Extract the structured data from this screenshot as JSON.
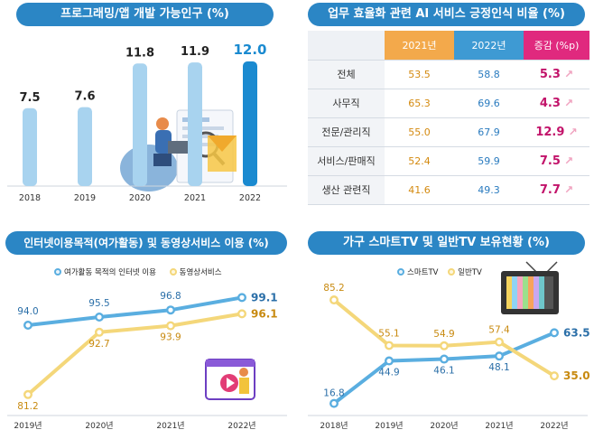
{
  "chart_data": [
    {
      "type": "bar",
      "title": "프로그래밍/앱 개발 가능인구 (%)",
      "categories": [
        "2018",
        "2019",
        "2020",
        "2021",
        "2022"
      ],
      "values": [
        7.5,
        7.6,
        11.8,
        11.9,
        12.0
      ],
      "value_labels": [
        "7.5",
        "7.6",
        "11.8",
        "11.9",
        "12.0"
      ],
      "highlight_index": 4,
      "colors": {
        "bar": "#a8d3ef",
        "highlight": "#1a8ad0"
      }
    },
    {
      "type": "table",
      "title": "업무 효율화 관련 AI 서비스 긍정인식 비율 (%)",
      "columns": [
        "2021년",
        "2022년",
        "증감 (%p)"
      ],
      "rows": [
        {
          "label": "전체",
          "y2021": "53.5",
          "y2022": "58.8",
          "change": "5.3"
        },
        {
          "label": "사무직",
          "y2021": "65.3",
          "y2022": "69.6",
          "change": "4.3"
        },
        {
          "label": "전문/관리직",
          "y2021": "55.0",
          "y2022": "67.9",
          "change": "12.9"
        },
        {
          "label": "서비스/판매직",
          "y2021": "52.4",
          "y2022": "59.9",
          "change": "7.5"
        },
        {
          "label": "생산 관련직",
          "y2021": "41.6",
          "y2022": "49.3",
          "change": "7.7"
        }
      ]
    },
    {
      "type": "line",
      "title": "인터넷이용목적(여가활동) 및 동영상서비스 이용 (%)",
      "x": [
        "2019년",
        "2020년",
        "2021년",
        "2022년"
      ],
      "series": [
        {
          "name": "여가활동 목적의 인터넷 이용",
          "values": [
            94.0,
            95.5,
            96.8,
            99.1
          ],
          "labels": [
            "94.0",
            "95.5",
            "96.8",
            "99.1"
          ],
          "color": "#5aaee0"
        },
        {
          "name": "동영상서비스",
          "values": [
            81.2,
            92.7,
            93.9,
            96.1
          ],
          "labels": [
            "81.2",
            "92.7",
            "93.9",
            "96.1"
          ],
          "color": "#f4d77a"
        }
      ]
    },
    {
      "type": "line",
      "title": "가구 스마트TV 및 일반TV 보유현황 (%)",
      "x": [
        "2018년",
        "2019년",
        "2020년",
        "2021년",
        "2022년"
      ],
      "series": [
        {
          "name": "스마트TV",
          "values": [
            16.8,
            44.9,
            46.1,
            48.1,
            63.5
          ],
          "labels": [
            "16.8",
            "44.9",
            "46.1",
            "48.1",
            "63.5"
          ],
          "color": "#5aaee0"
        },
        {
          "name": "일반TV",
          "values": [
            85.2,
            55.1,
            54.9,
            57.4,
            35.0
          ],
          "labels": [
            "85.2",
            "55.1",
            "54.9",
            "57.4",
            "35.0"
          ],
          "color": "#f4d77a"
        }
      ]
    }
  ]
}
